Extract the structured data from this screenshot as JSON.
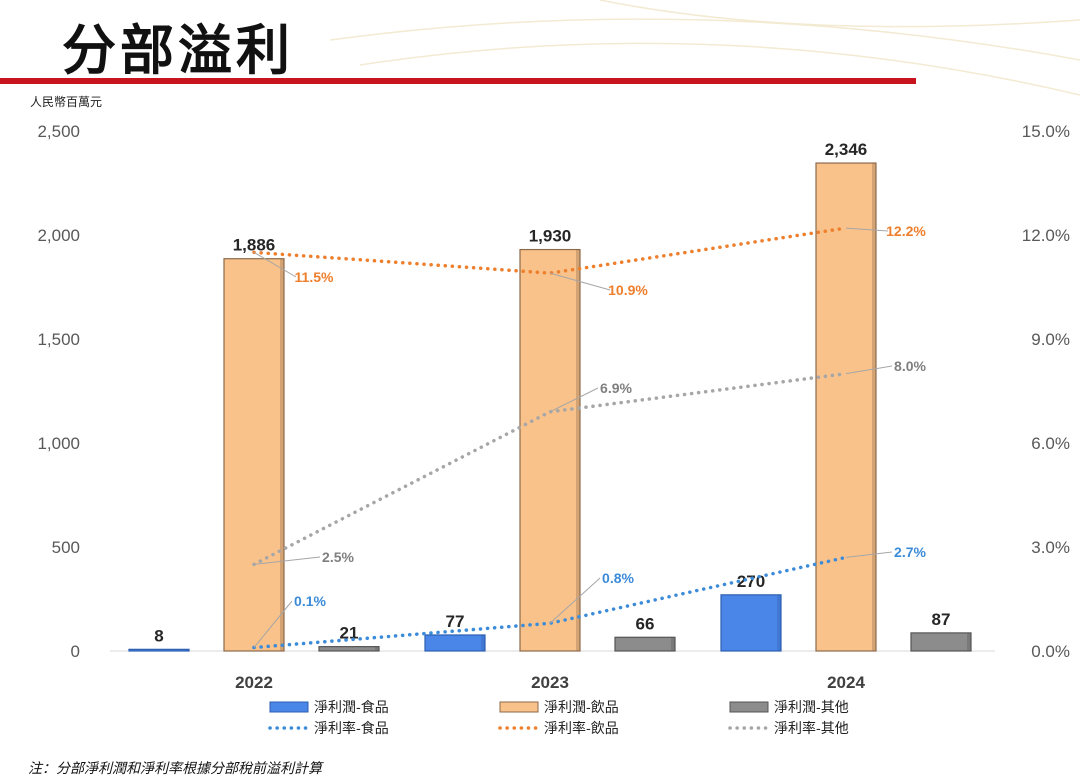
{
  "title": "分部溢利",
  "unit_label": "人民幣百萬元",
  "note": "注：分部淨利潤和淨利率根據分部稅前溢利計算",
  "colors": {
    "title_bar": "#c8141e",
    "food": "#4a86e8",
    "beverage": "#f9c28a",
    "other": "#8c8c8c",
    "margin_food": "#3c8bd9",
    "margin_beverage": "#ee7f2d",
    "margin_other": "#a6a6a6"
  },
  "chart_data": {
    "type": "bar",
    "categories": [
      "2022",
      "2023",
      "2024"
    ],
    "y_left": {
      "min": 0,
      "max": 2500,
      "ticks": [
        "0",
        "500",
        "1,000",
        "1,500",
        "2,000",
        "2,500"
      ]
    },
    "y_right": {
      "min": 0,
      "max": 15,
      "ticks": [
        "0.0%",
        "3.0%",
        "6.0%",
        "9.0%",
        "12.0%",
        "15.0%"
      ]
    },
    "bar_series": [
      {
        "name": "淨利潤-食品",
        "values": [
          8,
          77,
          270
        ],
        "labels": [
          "8",
          "77",
          "270"
        ]
      },
      {
        "name": "淨利潤-飲品",
        "values": [
          1886,
          1930,
          2346
        ],
        "labels": [
          "1,886",
          "1,930",
          "2,346"
        ]
      },
      {
        "name": "淨利潤-其他",
        "values": [
          21,
          66,
          87
        ],
        "labels": [
          "21",
          "66",
          "87"
        ]
      }
    ],
    "line_series": [
      {
        "name": "淨利率-食品",
        "values": [
          0.1,
          0.8,
          2.7
        ],
        "labels": [
          "0.1%",
          "0.8%",
          "2.7%"
        ]
      },
      {
        "name": "淨利率-飲品",
        "values": [
          11.5,
          10.9,
          12.2
        ],
        "labels": [
          "11.5%",
          "10.9%",
          "12.2%"
        ]
      },
      {
        "name": "淨利率-其他",
        "values": [
          2.5,
          6.9,
          8.0
        ],
        "labels": [
          "2.5%",
          "6.9%",
          "8.0%"
        ]
      }
    ],
    "legend_position": "bottom",
    "grid": false
  }
}
